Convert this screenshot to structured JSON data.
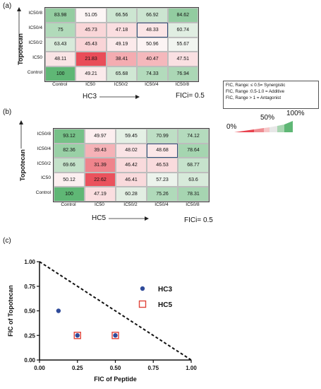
{
  "panel_a": {
    "label": "(a)",
    "ylabel": "Topotecan",
    "xlabel": "HC3",
    "fici": "FICi= 0.5",
    "row_labels": [
      "IC50/8",
      "IC50/4",
      "IC50/2",
      "IC50",
      "Control"
    ],
    "col_labels": [
      "Control",
      "IC50",
      "IC50/2",
      "IC50/4",
      "IC50/8"
    ],
    "rows": [
      [
        "83.98",
        "51.05",
        "66.56",
        "66.92",
        "84.62"
      ],
      [
        "75",
        "45.73",
        "47.18",
        "48.33",
        "60.74"
      ],
      [
        "63.43",
        "45.43",
        "49.19",
        "50.96",
        "55.67"
      ],
      [
        "48.11",
        "21.83",
        "38.41",
        "40.47",
        "47.51"
      ],
      [
        "100",
        "49.21",
        "65.68",
        "74.33",
        "76.94"
      ]
    ],
    "highlight": [
      1,
      3
    ]
  },
  "panel_b": {
    "label": "(b)",
    "ylabel": "Topotecan",
    "xlabel": "HC5",
    "fici": "FICi= 0.5",
    "row_labels": [
      "IC50/8",
      "IC50/4",
      "IC50/2",
      "IC50",
      "Control"
    ],
    "col_labels": [
      "Control",
      "IC50",
      "IC50/2",
      "IC50/4",
      "IC50/8"
    ],
    "rows": [
      [
        "93.12",
        "49.97",
        "59.45",
        "70.99",
        "74.12"
      ],
      [
        "82.36",
        "39.43",
        "48.02",
        "48.68",
        "78.64"
      ],
      [
        "69.66",
        "31.39",
        "46.42",
        "46.53",
        "68.77"
      ],
      [
        "50.12",
        "22.62",
        "46.41",
        "57.23",
        "63.6"
      ],
      [
        "100",
        "47.19",
        "60.28",
        "75.26",
        "78.31"
      ]
    ],
    "highlight": [
      1,
      3
    ]
  },
  "legend": {
    "lines": [
      "FIC, Range: ≤ 0.5= Synergistic",
      "FIC, Range :0.5-1.0 = Additive",
      "FIC, Range > 1 = Antagonist"
    ],
    "scale_labels": [
      "0%",
      "50%",
      "100%"
    ]
  },
  "panel_c": {
    "label": "(c)"
  },
  "colors": {
    "red": "#e8434f",
    "green": "#5fb775",
    "scatter_blue": "#2f4b9a",
    "scatter_red": "#e0443a"
  },
  "chart_data": [
    {
      "type": "heatmap",
      "x": [
        "Control",
        "IC50",
        "IC50/2",
        "IC50/4",
        "IC50/8"
      ],
      "y": [
        "IC50/8",
        "IC50/4",
        "IC50/2",
        "IC50",
        "Control"
      ],
      "values": [
        [
          83.98,
          51.05,
          66.56,
          66.92,
          84.62
        ],
        [
          75,
          45.73,
          47.18,
          48.33,
          60.74
        ],
        [
          63.43,
          45.43,
          49.19,
          50.96,
          55.67
        ],
        [
          48.11,
          21.83,
          38.41,
          40.47,
          47.51
        ],
        [
          100,
          49.21,
          65.68,
          74.33,
          76.94
        ]
      ],
      "xlabel": "HC3",
      "ylabel": "Topotecan"
    },
    {
      "type": "heatmap",
      "x": [
        "Control",
        "IC50",
        "IC50/2",
        "IC50/4",
        "IC50/8"
      ],
      "y": [
        "IC50/8",
        "IC50/4",
        "IC50/2",
        "IC50",
        "Control"
      ],
      "values": [
        [
          93.12,
          49.97,
          59.45,
          70.99,
          74.12
        ],
        [
          82.36,
          39.43,
          48.02,
          48.68,
          78.64
        ],
        [
          69.66,
          31.39,
          46.42,
          46.53,
          68.77
        ],
        [
          50.12,
          22.62,
          46.41,
          57.23,
          63.6
        ],
        [
          100,
          47.19,
          60.28,
          75.26,
          78.31
        ]
      ],
      "xlabel": "HC5",
      "ylabel": "Topotecan"
    },
    {
      "type": "scatter",
      "xlabel": "FIC of Peptide",
      "ylabel": "FIC of Topotecan",
      "xlim": [
        0,
        1
      ],
      "ylim": [
        0,
        1
      ],
      "xticks": [
        "0.00",
        "0.25",
        "0.50",
        "0.75",
        "1.00"
      ],
      "yticks": [
        "0.00",
        "0.25",
        "0.50",
        "0.75",
        "1.00"
      ],
      "series": [
        {
          "name": "HC3",
          "marker": "filled-circle",
          "points": [
            [
              0.125,
              0.5
            ],
            [
              0.25,
              0.25
            ],
            [
              0.5,
              0.25
            ]
          ]
        },
        {
          "name": "HC5",
          "marker": "open-square",
          "points": [
            [
              0.25,
              0.25
            ],
            [
              0.5,
              0.25
            ]
          ]
        }
      ],
      "reference_line": {
        "from": [
          0,
          1
        ],
        "to": [
          1,
          0
        ],
        "style": "dashed"
      }
    }
  ]
}
